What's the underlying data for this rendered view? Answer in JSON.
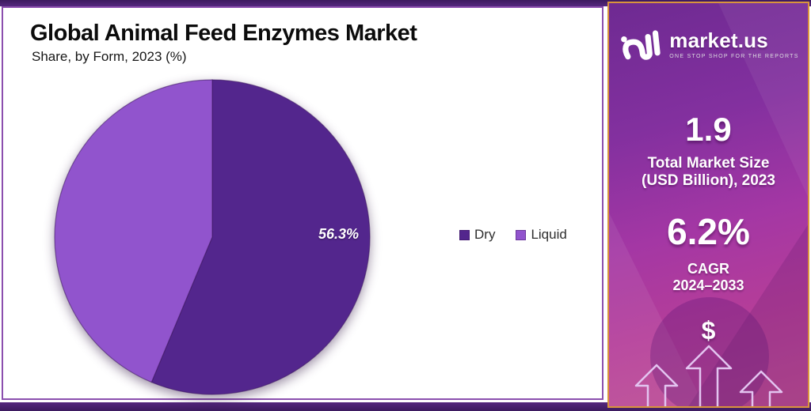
{
  "header": {
    "title": "Global Animal Feed Enzymes Market",
    "subtitle": "Share, by Form, 2023 (%)"
  },
  "chart_data": {
    "type": "pie",
    "title": "Global Animal Feed Enzymes Market",
    "subtitle": "Share, by Form, 2023 (%)",
    "categories": [
      "Dry",
      "Liquid"
    ],
    "values": [
      56.3,
      43.7
    ],
    "unit": "%",
    "colors": [
      "#53268d",
      "#9154cd"
    ],
    "start_angle_deg": 0,
    "direction": "clockwise",
    "label_text": "56.3%",
    "legend_position": "right-of-pie"
  },
  "legend": {
    "items": [
      {
        "label": "Dry",
        "color": "#53268d"
      },
      {
        "label": "Liquid",
        "color": "#9154cd"
      }
    ]
  },
  "sidebar": {
    "brand": {
      "name": "market.us",
      "tagline": "ONE STOP SHOP FOR THE REPORTS"
    },
    "stats": [
      {
        "value": "1.9",
        "label_line1": "Total Market Size",
        "label_line2": "(USD Billion), 2023"
      },
      {
        "value": "6.2%",
        "label_line1": "CAGR",
        "label_line2": "2024–2033"
      }
    ],
    "dollar_symbol": "$",
    "colors": {
      "border": "#d9943c",
      "gradient_top": "#6e2a92",
      "gradient_bottom": "#bf4f92"
    }
  },
  "frame": {
    "bar_color": "#4a2072",
    "panel_border": "#8b4fae"
  }
}
